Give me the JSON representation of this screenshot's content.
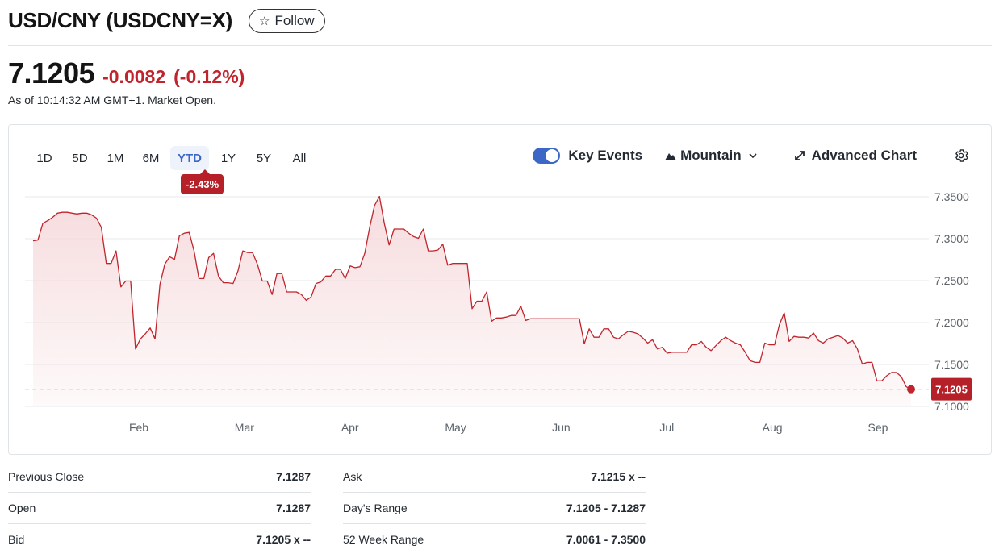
{
  "header": {
    "title": "USD/CNY (USDCNY=X)",
    "follow_label": "Follow"
  },
  "quote": {
    "price": "7.1205",
    "change": "-0.0082",
    "change_pct": "(-0.12%)",
    "as_of": "As of 10:14:32 AM GMT+1. Market Open."
  },
  "ranges": [
    {
      "label": "1D",
      "active": false
    },
    {
      "label": "5D",
      "active": false
    },
    {
      "label": "1M",
      "active": false
    },
    {
      "label": "6M",
      "active": false
    },
    {
      "label": "YTD",
      "active": true
    },
    {
      "label": "1Y",
      "active": false
    },
    {
      "label": "5Y",
      "active": false
    },
    {
      "label": "All",
      "active": false
    }
  ],
  "ytd_change": "-2.43%",
  "toolbar": {
    "key_events_label": "Key Events",
    "key_events_on": true,
    "chart_type_label": "Mountain",
    "advanced_label": "Advanced Chart"
  },
  "colors": {
    "line": "#c0252d",
    "fill": "#f6dadc",
    "accent": "#3d67c7",
    "last_price_badge": "#b62028"
  },
  "chart_data": {
    "type": "area",
    "x_tick_labels": [
      "Feb",
      "Mar",
      "Apr",
      "May",
      "Jun",
      "Jul",
      "Aug",
      "Sep"
    ],
    "y_tick_labels": [
      "7.3500",
      "7.3000",
      "7.2500",
      "7.2000",
      "7.1500",
      "7.1000"
    ],
    "ylim": [
      7.1,
      7.35
    ],
    "last_value": "7.1205",
    "reference_line": 7.1205,
    "values": [
      7.2975,
      7.2985,
      7.3185,
      7.3215,
      7.3255,
      7.3305,
      7.3315,
      7.3315,
      7.3305,
      7.3295,
      7.3305,
      7.3305,
      7.3285,
      7.3245,
      7.3135,
      7.2705,
      7.2705,
      7.2855,
      7.2425,
      7.2495,
      7.2495,
      7.1685,
      7.1805,
      7.1865,
      7.1935,
      7.1805,
      7.2455,
      7.2695,
      7.2785,
      7.2755,
      7.3035,
      7.3065,
      7.3075,
      7.2855,
      7.2525,
      7.2525,
      7.2775,
      7.2825,
      7.2555,
      7.2475,
      7.2475,
      7.2465,
      7.2615,
      7.2855,
      7.2835,
      7.2835,
      7.2695,
      7.2495,
      7.2495,
      7.2335,
      7.2585,
      7.2585,
      7.2365,
      7.2365,
      7.2365,
      7.2335,
      7.2265,
      7.2305,
      7.2465,
      7.2485,
      7.2555,
      7.2555,
      7.2635,
      7.2635,
      7.2525,
      7.2675,
      7.2655,
      7.2665,
      7.2825,
      7.3135,
      7.3395,
      7.3505,
      7.3185,
      7.2925,
      7.3115,
      7.3115,
      7.3115,
      7.3065,
      7.3025,
      7.3005,
      7.3115,
      7.2855,
      7.2855,
      7.2865,
      7.2935,
      7.2685,
      7.2705,
      7.2705,
      7.2705,
      7.2705,
      7.2165,
      7.2255,
      7.2255,
      7.2365,
      7.2015,
      7.2055,
      7.2055,
      7.2065,
      7.2085,
      7.2085,
      7.2195,
      7.2025,
      7.2045,
      7.2045,
      7.2045,
      7.2045,
      7.2045,
      7.2045,
      7.2045,
      7.2045,
      7.2045,
      7.2045,
      7.2045,
      7.1745,
      7.1925,
      7.1825,
      7.1825,
      7.1925,
      7.1925,
      7.1825,
      7.1805,
      7.1855,
      7.1895,
      7.1885,
      7.1865,
      7.1815,
      7.1755,
      7.1795,
      7.1685,
      7.1705,
      7.1635,
      7.1645,
      7.1645,
      7.1645,
      7.1645,
      7.1735,
      7.1735,
      7.1775,
      7.1705,
      7.1665,
      7.1725,
      7.1785,
      7.1825,
      7.1785,
      7.1755,
      7.1735,
      7.1645,
      7.1545,
      7.1525,
      7.1525,
      7.1755,
      7.1735,
      7.1735,
      7.1975,
      7.2115,
      7.1775,
      7.1835,
      7.1825,
      7.1825,
      7.1815,
      7.1875,
      7.1785,
      7.1755,
      7.1805,
      7.1825,
      7.1845,
      7.1815,
      7.1755,
      7.1785,
      7.1685,
      7.1505,
      7.1525,
      7.1525,
      7.1305,
      7.1305,
      7.1365,
      7.1405,
      7.1405,
      7.1355,
      7.1235,
      7.1205
    ]
  },
  "stats": {
    "left": [
      {
        "label": "Previous Close",
        "value": "7.1287"
      },
      {
        "label": "Open",
        "value": "7.1287"
      },
      {
        "label": "Bid",
        "value": "7.1205 x --"
      }
    ],
    "right": [
      {
        "label": "Ask",
        "value": "7.1215 x --"
      },
      {
        "label": "Day's Range",
        "value": "7.1205 - 7.1287"
      },
      {
        "label": "52 Week Range",
        "value": "7.0061 - 7.3500"
      }
    ]
  }
}
